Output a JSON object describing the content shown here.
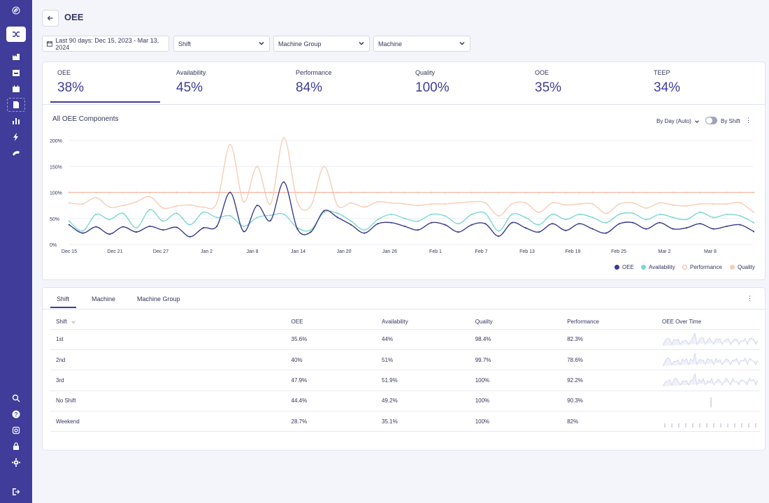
{
  "colors": {
    "sidebar": "#3f3c9a",
    "accent": "#3f3c9a",
    "oee": "#3a3c8c",
    "availability": "#7dd9cc",
    "performance": "#f2b8a2",
    "quality": "#f7cdb6"
  },
  "sidebar": {
    "icons": [
      "logo-icon",
      "shuffle-icon",
      "factory-icon",
      "inbox-icon",
      "calendar-icon",
      "report-icon",
      "bar-chart-icon",
      "lightning-icon",
      "tape-icon",
      "search-icon",
      "help-icon",
      "integrations-icon",
      "lock-icon",
      "gear-icon",
      "logout-icon"
    ]
  },
  "header": {
    "back_icon": "arrow-left-icon",
    "title": "OEE"
  },
  "filters": {
    "date_range": "Last 90 days: Dec 15, 2023 - Mar 13, 2024",
    "shift": "Shift",
    "machine_group": "Machine Group",
    "machine": "Machine"
  },
  "kpis": [
    {
      "label": "OEE",
      "value": "38%"
    },
    {
      "label": "Availability",
      "value": "45%"
    },
    {
      "label": "Performance",
      "value": "84%"
    },
    {
      "label": "Quality",
      "value": "100%"
    },
    {
      "label": "OOE",
      "value": "35%"
    },
    {
      "label": "TEEP",
      "value": "34%"
    }
  ],
  "chart": {
    "title": "All OEE Components",
    "granularity": "By Day (Auto)",
    "by_shift_label": "By Shift",
    "toggle_on": false
  },
  "chart_data": {
    "type": "line",
    "x_ticks": [
      "Dec 15",
      "Dec 21",
      "Dec 27",
      "Jan 2",
      "Jan 8",
      "Jan 14",
      "Jan 20",
      "Jan 26",
      "Feb 1",
      "Feb 7",
      "Feb 13",
      "Feb 19",
      "Feb 25",
      "Mar 2",
      "Mar 8"
    ],
    "y_ticks": [
      "0%",
      "50%",
      "100%",
      "150%",
      "200%"
    ],
    "ylim": [
      0,
      200
    ],
    "grid": true,
    "legend_position": "bottom-right",
    "series": [
      {
        "name": "OEE",
        "values": [
          38,
          22,
          34,
          20,
          34,
          24,
          35,
          28,
          33,
          15,
          32,
          35,
          100,
          25,
          75,
          46,
          120,
          30,
          24,
          65,
          52,
          38,
          22,
          40,
          42,
          35,
          28,
          42,
          38,
          24,
          38,
          40,
          16,
          42,
          32,
          24,
          40,
          27,
          40,
          30,
          22,
          40,
          42,
          30,
          42,
          30,
          32,
          40,
          30,
          35,
          38,
          25
        ]
      },
      {
        "name": "Availability",
        "values": [
          45,
          26,
          58,
          48,
          60,
          32,
          67,
          45,
          60,
          38,
          62,
          52,
          55,
          35,
          52,
          56,
          58,
          32,
          28,
          62,
          60,
          45,
          28,
          48,
          58,
          50,
          45,
          58,
          55,
          40,
          58,
          60,
          26,
          58,
          52,
          38,
          58,
          48,
          58,
          52,
          42,
          58,
          60,
          48,
          58,
          52,
          48,
          62,
          52,
          58,
          55,
          42
        ]
      },
      {
        "name": "Performance",
        "values": [
          100,
          100,
          100,
          100,
          100,
          100,
          100,
          100,
          100,
          100,
          100,
          100,
          100,
          100,
          100,
          100,
          100,
          100,
          100,
          100,
          100,
          100,
          100,
          100,
          100,
          100,
          100,
          100,
          100,
          100,
          100,
          100,
          100,
          100,
          100,
          100,
          100,
          100,
          100,
          100,
          100,
          100,
          100,
          100,
          100,
          100,
          100,
          100,
          100,
          100,
          100,
          100
        ]
      },
      {
        "name": "Quality",
        "values": [
          80,
          78,
          90,
          72,
          75,
          82,
          92,
          70,
          74,
          76,
          72,
          80,
          192,
          82,
          150,
          78,
          205,
          82,
          74,
          150,
          75,
          80,
          72,
          82,
          80,
          78,
          75,
          78,
          78,
          80,
          82,
          80,
          55,
          78,
          80,
          62,
          80,
          76,
          78,
          78,
          60,
          78,
          80,
          70,
          80,
          76,
          74,
          78,
          78,
          78,
          80,
          62
        ]
      }
    ]
  },
  "table_tabs": [
    "Shift",
    "Machine",
    "Machine Group"
  ],
  "table": {
    "headers": [
      "Shift",
      "OEE",
      "Availability",
      "Quality",
      "Performance",
      "OEE Over Time"
    ],
    "rows": [
      {
        "shift": "1st",
        "oee": "35.6%",
        "availability": "44%",
        "quality": "98.4%",
        "performance": "82.3%"
      },
      {
        "shift": "2nd",
        "oee": "40%",
        "availability": "51%",
        "quality": "99.7%",
        "performance": "78.6%"
      },
      {
        "shift": "3rd",
        "oee": "47.9%",
        "availability": "51.9%",
        "quality": "100%",
        "performance": "92.2%"
      },
      {
        "shift": "No Shift",
        "oee": "44.4%",
        "availability": "49.2%",
        "quality": "100%",
        "performance": "90.3%"
      },
      {
        "shift": "Weekend",
        "oee": "28.7%",
        "availability": "35.1%",
        "quality": "100%",
        "performance": "82%"
      }
    ]
  }
}
